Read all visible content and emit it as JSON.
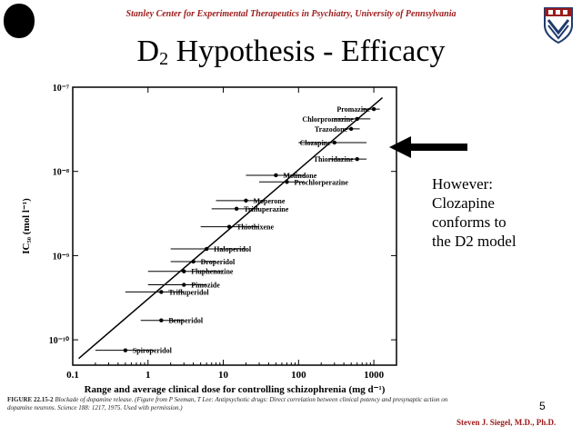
{
  "header": {
    "institution": "Stanley Center for Experimental Therapeutics in Psychiatry, University of Pennsylvania"
  },
  "slide": {
    "title_main": "D",
    "title_sub": "2",
    "title_rest": " Hypothesis - Efficacy",
    "note_lines": [
      "However:",
      "Clozapine",
      "conforms to",
      "the D2 model"
    ],
    "page_number": "5",
    "author": "Steven J. Siegel, M.D., Ph.D."
  },
  "caption": {
    "label": "FIGURE 22.15-2",
    "text": "Blockade of dopamine release. (Figure from P Seeman, T Lee: Antipsychotic drugs: Direct correlation between clinical potency and presynaptic action on dopamine neurons. Science 188: 1217, 1975. Used with permission.)"
  },
  "colors": {
    "accent": "#9c1a1a",
    "ink": "#000000"
  },
  "icons": {
    "left_logo": "circle-logo-icon",
    "right_logo": "penn-shield-icon",
    "arrow": "arrow-left-icon"
  },
  "chart_data": {
    "type": "scatter",
    "xlabel": "Range and average clinical dose for controlling schizophrenia (mg d⁻¹)",
    "ylabel": "IC₅₀ (mol l⁻¹)",
    "x_scale": "log",
    "y_scale": "log",
    "xlim": [
      0.1,
      2000
    ],
    "ylim": [
      5e-11,
      1e-07
    ],
    "x_ticks": [
      0.1,
      1,
      10,
      100,
      1000
    ],
    "x_tick_labels": [
      "0.1",
      "1",
      "10",
      "100",
      "1000"
    ],
    "y_ticks": [
      1e-07,
      1e-08,
      1e-09,
      1e-10
    ],
    "y_tick_labels": [
      "10⁻⁷",
      "10⁻⁸",
      "10⁻⁹",
      "10⁻¹⁰"
    ],
    "grid": false,
    "trendline": {
      "x": [
        0.12,
        1300
      ],
      "y": [
        6e-11,
        7.5e-08
      ]
    },
    "points": [
      {
        "name": "Promazine",
        "x": 1000,
        "y": 5.5e-08,
        "xmin": 700,
        "xmax": 1200
      },
      {
        "name": "Chlorpromazine",
        "x": 600,
        "y": 4.2e-08,
        "xmin": 300,
        "xmax": 900
      },
      {
        "name": "Trazodone",
        "x": 500,
        "y": 3.2e-08,
        "xmin": 400,
        "xmax": 650
      },
      {
        "name": "Clozapine",
        "x": 300,
        "y": 2.2e-08,
        "xmin": 100,
        "xmax": 800
      },
      {
        "name": "Thioridazine",
        "x": 600,
        "y": 1.4e-08,
        "xmin": 250,
        "xmax": 800
      },
      {
        "name": "Molindone",
        "x": 50,
        "y": 9e-09,
        "xmin": 20,
        "xmax": 120
      },
      {
        "name": "Prochlorperazine",
        "x": 70,
        "y": 7.5e-09,
        "xmin": 30,
        "xmax": 120
      },
      {
        "name": "Moperone",
        "x": 20,
        "y": 4.5e-09,
        "xmin": 8,
        "xmax": 35
      },
      {
        "name": "Trifluperazine",
        "x": 15,
        "y": 3.6e-09,
        "xmin": 7,
        "xmax": 30
      },
      {
        "name": "Thiothixene",
        "x": 12,
        "y": 2.2e-09,
        "xmin": 5,
        "xmax": 30
      },
      {
        "name": "Haloperidol",
        "x": 6,
        "y": 1.2e-09,
        "xmin": 2,
        "xmax": 20
      },
      {
        "name": "Droperidol",
        "x": 4,
        "y": 8.5e-10,
        "xmin": 2,
        "xmax": 8
      },
      {
        "name": "Fluphenazine",
        "x": 3,
        "y": 6.5e-10,
        "xmin": 1,
        "xmax": 10
      },
      {
        "name": "Pimozide",
        "x": 3,
        "y": 4.5e-10,
        "xmin": 1,
        "xmax": 6
      },
      {
        "name": "Trifluperidol",
        "x": 1.5,
        "y": 3.7e-10,
        "xmin": 0.5,
        "xmax": 3
      },
      {
        "name": "Benperidol",
        "x": 1.5,
        "y": 1.7e-10,
        "xmin": 0.8,
        "xmax": 3
      },
      {
        "name": "Spiroperidol",
        "x": 0.5,
        "y": 7.5e-11,
        "xmin": 0.2,
        "xmax": 1.2
      }
    ]
  }
}
